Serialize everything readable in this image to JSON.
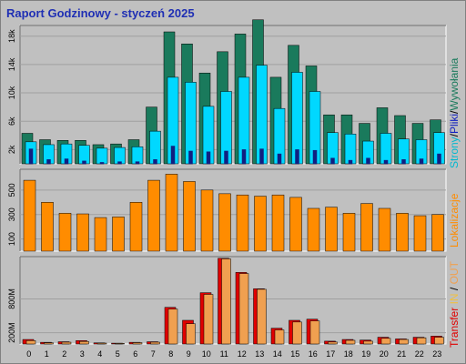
{
  "title": "Raport Godzinowy -  styczeń 2025",
  "colors": {
    "strony": "#1a7a5c",
    "pliki": "#00d8ff",
    "wywolania": "#102080",
    "lokalizacje": "#ff8c00",
    "transfer": "#e00000",
    "in": "#f0c040",
    "out": "#f0a050",
    "panel": "#c0c0c0",
    "grid": "#a0a0a0"
  },
  "chart_data": [
    {
      "type": "bar",
      "panel": "top",
      "categories": [
        "0",
        "1",
        "2",
        "3",
        "4",
        "5",
        "6",
        "7",
        "8",
        "9",
        "10",
        "11",
        "12",
        "13",
        "14",
        "15",
        "16",
        "17",
        "18",
        "19",
        "20",
        "21",
        "22",
        "23"
      ],
      "yticks": [
        "2k",
        "6k",
        "10k",
        "14k",
        "18k"
      ],
      "ytick_values": [
        2000,
        6000,
        10000,
        14000,
        18000
      ],
      "ylim": [
        0,
        19500
      ],
      "side_label_parts": [
        "Strony",
        "/",
        "Pliki",
        "/",
        "Wywołania"
      ],
      "series": [
        {
          "name": "Strony",
          "values": [
            4300,
            3400,
            3300,
            3300,
            2700,
            2800,
            3400,
            8000,
            18600,
            16900,
            12800,
            15800,
            18300,
            20300,
            12200,
            16700,
            13800,
            6900,
            6900,
            5700,
            7900,
            6800,
            5700,
            6200
          ]
        },
        {
          "name": "Pliki",
          "values": [
            3100,
            2700,
            2800,
            2600,
            2200,
            2300,
            2400,
            4600,
            12200,
            11500,
            8100,
            10200,
            12200,
            13900,
            7800,
            12900,
            10200,
            4400,
            4200,
            3200,
            4300,
            3500,
            3400,
            4400
          ]
        },
        {
          "name": "Wywołania",
          "values": [
            2100,
            600,
            700,
            400,
            200,
            300,
            300,
            600,
            2500,
            1800,
            1700,
            1800,
            2000,
            2100,
            1400,
            2000,
            1900,
            800,
            500,
            800,
            500,
            600,
            700,
            1400
          ]
        }
      ]
    },
    {
      "type": "bar",
      "panel": "middle",
      "categories": [
        "0",
        "1",
        "2",
        "3",
        "4",
        "5",
        "6",
        "7",
        "8",
        "9",
        "10",
        "11",
        "12",
        "13",
        "14",
        "15",
        "16",
        "17",
        "18",
        "19",
        "20",
        "21",
        "22",
        "23"
      ],
      "yticks": [
        "100",
        "300",
        "500"
      ],
      "ytick_values": [
        100,
        300,
        500
      ],
      "ylim": [
        0,
        670
      ],
      "side_label": "Lokalizacje",
      "series": [
        {
          "name": "Lokalizacje",
          "values": [
            580,
            400,
            310,
            305,
            275,
            280,
            400,
            580,
            630,
            570,
            500,
            470,
            460,
            450,
            460,
            440,
            350,
            360,
            310,
            390,
            350,
            310,
            290,
            300
          ]
        }
      ]
    },
    {
      "type": "bar",
      "panel": "bottom",
      "categories": [
        "0",
        "1",
        "2",
        "3",
        "4",
        "5",
        "6",
        "7",
        "8",
        "9",
        "10",
        "11",
        "12",
        "13",
        "14",
        "15",
        "16",
        "17",
        "18",
        "19",
        "20",
        "21",
        "22",
        "23"
      ],
      "yticks": [
        "200M",
        "800M"
      ],
      "ytick_values": [
        200,
        800
      ],
      "ylim": [
        0,
        1550
      ],
      "side_label_parts": [
        "Transfer",
        " ",
        "IN",
        " / ",
        "OUT"
      ],
      "series": [
        {
          "name": "Transfer",
          "values": [
            80,
            30,
            40,
            60,
            20,
            15,
            30,
            40,
            650,
            420,
            910,
            1520,
            1270,
            980,
            280,
            420,
            440,
            50,
            80,
            70,
            120,
            90,
            120,
            140
          ]
        },
        {
          "name": "IN",
          "values": [
            50,
            20,
            30,
            40,
            15,
            10,
            20,
            30,
            600,
            340,
            860,
            1500,
            1230,
            960,
            230,
            380,
            400,
            30,
            60,
            40,
            90,
            70,
            100,
            110
          ]
        },
        {
          "name": "OUT",
          "values": [
            60,
            22,
            32,
            45,
            16,
            12,
            24,
            32,
            620,
            360,
            880,
            1510,
            1250,
            970,
            250,
            390,
            410,
            35,
            65,
            50,
            100,
            80,
            110,
            120
          ]
        }
      ]
    }
  ]
}
